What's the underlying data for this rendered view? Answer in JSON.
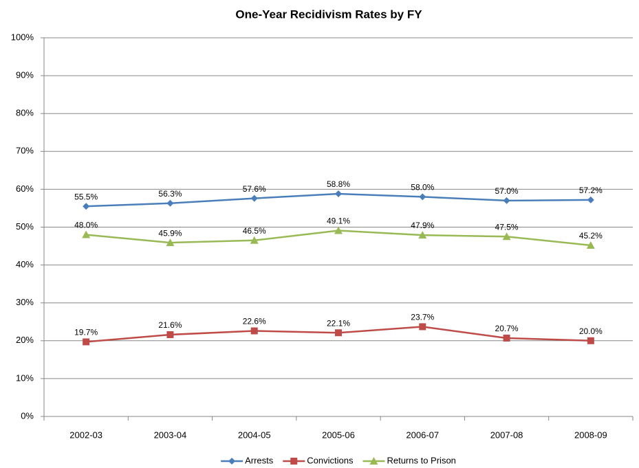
{
  "chart_data": {
    "type": "line",
    "title": "One-Year Recidivism Rates by FY",
    "categories": [
      "2002-03",
      "2003-04",
      "2004-05",
      "2005-06",
      "2006-07",
      "2007-08",
      "2008-09"
    ],
    "series": [
      {
        "name": "Arrests",
        "color": "#4a7ebb",
        "marker": "diamond",
        "values": [
          55.5,
          56.3,
          57.6,
          58.8,
          58.0,
          57.0,
          57.2
        ],
        "value_labels": [
          "55.5%",
          "56.3%",
          "57.6%",
          "58.8%",
          "58.0%",
          "57.0%",
          "57.2%"
        ]
      },
      {
        "name": "Convictions",
        "color": "#be4b48",
        "marker": "square",
        "values": [
          19.7,
          21.6,
          22.6,
          22.1,
          23.7,
          20.7,
          20.0
        ],
        "value_labels": [
          "19.7%",
          "21.6%",
          "22.6%",
          "22.1%",
          "23.7%",
          "20.7%",
          "20.0%"
        ]
      },
      {
        "name": "Returns to Prison",
        "color": "#98b954",
        "marker": "triangle",
        "values": [
          48.0,
          45.9,
          46.5,
          49.1,
          47.9,
          47.5,
          45.2
        ],
        "value_labels": [
          "48.0%",
          "45.9%",
          "46.5%",
          "49.1%",
          "47.9%",
          "47.5%",
          "45.2%"
        ]
      }
    ],
    "ylim": [
      0,
      100
    ],
    "yticks": [
      {
        "value": 0,
        "label": "0%"
      },
      {
        "value": 10,
        "label": "10%"
      },
      {
        "value": 20,
        "label": "20%"
      },
      {
        "value": 30,
        "label": "30%"
      },
      {
        "value": 40,
        "label": "40%"
      },
      {
        "value": 50,
        "label": "50%"
      },
      {
        "value": 60,
        "label": "60%"
      },
      {
        "value": 70,
        "label": "70%"
      },
      {
        "value": 80,
        "label": "80%"
      },
      {
        "value": 90,
        "label": "90%"
      },
      {
        "value": 100,
        "label": "100%"
      }
    ],
    "grid": true,
    "legend": "bottom"
  }
}
